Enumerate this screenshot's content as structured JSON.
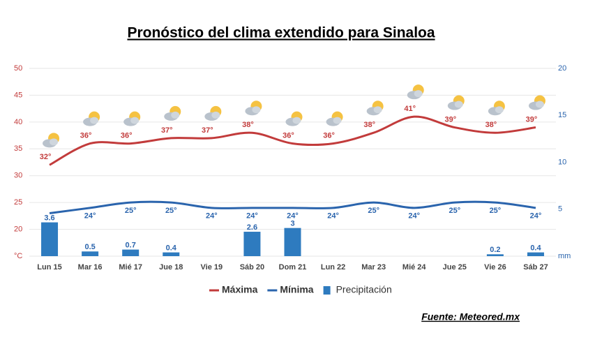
{
  "chart_data": {
    "type": "line",
    "title": "Pronóstico del clima extendido para Sinaloa",
    "source": "Fuente: Meteored.mx",
    "categories": [
      "Lun 15",
      "Mar 16",
      "Mié 17",
      "Jue 18",
      "Vie 19",
      "Sáb 20",
      "Dom 21",
      "Lun 22",
      "Mar 23",
      "Mié 24",
      "Jue 25",
      "Vie 26",
      "Sáb 27"
    ],
    "ylim": [
      15,
      50
    ],
    "yticks": [
      {
        "value": 15,
        "label": "°C"
      },
      20,
      25,
      30,
      35,
      40,
      45,
      50
    ],
    "y2lim": [
      0,
      20
    ],
    "y2ticks": [
      {
        "value": 0,
        "label": "mm"
      },
      5,
      10,
      15,
      20
    ],
    "grid": true,
    "legend": "bottom",
    "series": [
      {
        "name": "Máxima",
        "type": "line",
        "color": "#c23b3b",
        "values": [
          32,
          36,
          36,
          37,
          37,
          38,
          36,
          36,
          38,
          41,
          39,
          38,
          39
        ],
        "value_labels": [
          "32°",
          "36°",
          "36°",
          "37°",
          "37°",
          "38°",
          "36°",
          "36°",
          "38°",
          "41°",
          "39°",
          "38°",
          "39°"
        ]
      },
      {
        "name": "Mínima",
        "type": "line",
        "color": "#2a64ad",
        "values": [
          23,
          24,
          25,
          25,
          24,
          24,
          24,
          24,
          25,
          24,
          25,
          25,
          24
        ],
        "value_labels": [
          null,
          "24°",
          "25°",
          "25°",
          "24°",
          "24°",
          "24°",
          "24°",
          "25°",
          "24°",
          "25°",
          "25°",
          "24°"
        ]
      },
      {
        "name": "Precipitación",
        "type": "bar",
        "axis": "y2",
        "color": "#2e7bbf",
        "values": [
          3.6,
          0.5,
          0.7,
          0.4,
          null,
          2.6,
          3,
          null,
          null,
          null,
          null,
          0.2,
          0.4
        ]
      }
    ]
  }
}
